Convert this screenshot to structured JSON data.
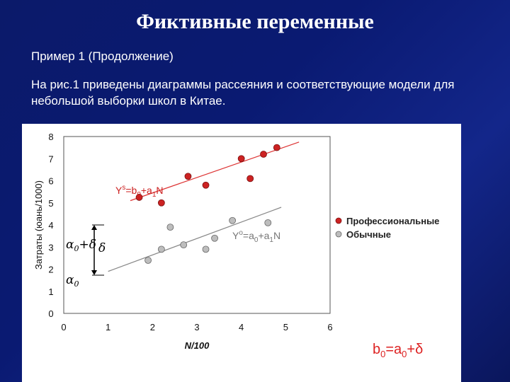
{
  "title": "Фиктивные переменные",
  "subtitle": "Пример 1 (Продолжение)",
  "description": "На рис.1 приведены диаграммы рассеяния и соответствующие модели для небольшой выборки школ в Китае.",
  "colors": {
    "red": "#cc2222",
    "gray": "#bdbdbd",
    "background": "#0b1a6a"
  },
  "chart_data": {
    "type": "scatter",
    "xlabel": "N/100",
    "ylabel": "Затраты (юань/1000)",
    "xlim": [
      0,
      6
    ],
    "ylim": [
      0,
      8
    ],
    "x_ticks": [
      "0",
      "1",
      "2",
      "3",
      "4",
      "5",
      "6"
    ],
    "y_ticks": [
      "0",
      "1",
      "2",
      "3",
      "4",
      "5",
      "6",
      "7",
      "8"
    ],
    "grid": false,
    "legend": "right",
    "series": [
      {
        "name": "Профессиональные",
        "color": "#cc2222",
        "points": [
          [
            1.7,
            5.25
          ],
          [
            2.2,
            5.0
          ],
          [
            2.8,
            6.2
          ],
          [
            3.2,
            5.8
          ],
          [
            4.0,
            7.0
          ],
          [
            4.2,
            6.1
          ],
          [
            4.5,
            7.2
          ],
          [
            4.8,
            7.5
          ]
        ],
        "line": [
          [
            1.5,
            5.1
          ],
          [
            5.3,
            7.75
          ]
        ],
        "equation": {
          "base": "Y",
          "sup": "s",
          "mid": "=b",
          "sub0": "0",
          "plus": "+a",
          "sub1": "1",
          "tail": "N"
        }
      },
      {
        "name": "Обычные",
        "color": "#bdbdbd",
        "points": [
          [
            1.9,
            2.4
          ],
          [
            2.2,
            2.9
          ],
          [
            2.4,
            3.9
          ],
          [
            2.7,
            3.1
          ],
          [
            3.2,
            2.9
          ],
          [
            3.4,
            3.4
          ],
          [
            3.8,
            4.2
          ],
          [
            4.6,
            4.1
          ]
        ],
        "line": [
          [
            1.0,
            1.9
          ],
          [
            4.9,
            4.8
          ]
        ],
        "equation": {
          "base": "Y",
          "sup": "o",
          "mid": "=a",
          "sub0": "0",
          "plus": "+a",
          "sub1": "1",
          "tail": "N"
        }
      }
    ],
    "annotations": {
      "alpha_delta": {
        "alpha": "α",
        "sub": "0",
        "plus": "+δ",
        "delta": "δ"
      },
      "alpha0": {
        "alpha": "α",
        "sub": "0"
      },
      "formula": {
        "b": "b",
        "sub0": "0",
        "eq": "=a",
        "sub1": "0",
        "tail": "+δ"
      }
    }
  }
}
